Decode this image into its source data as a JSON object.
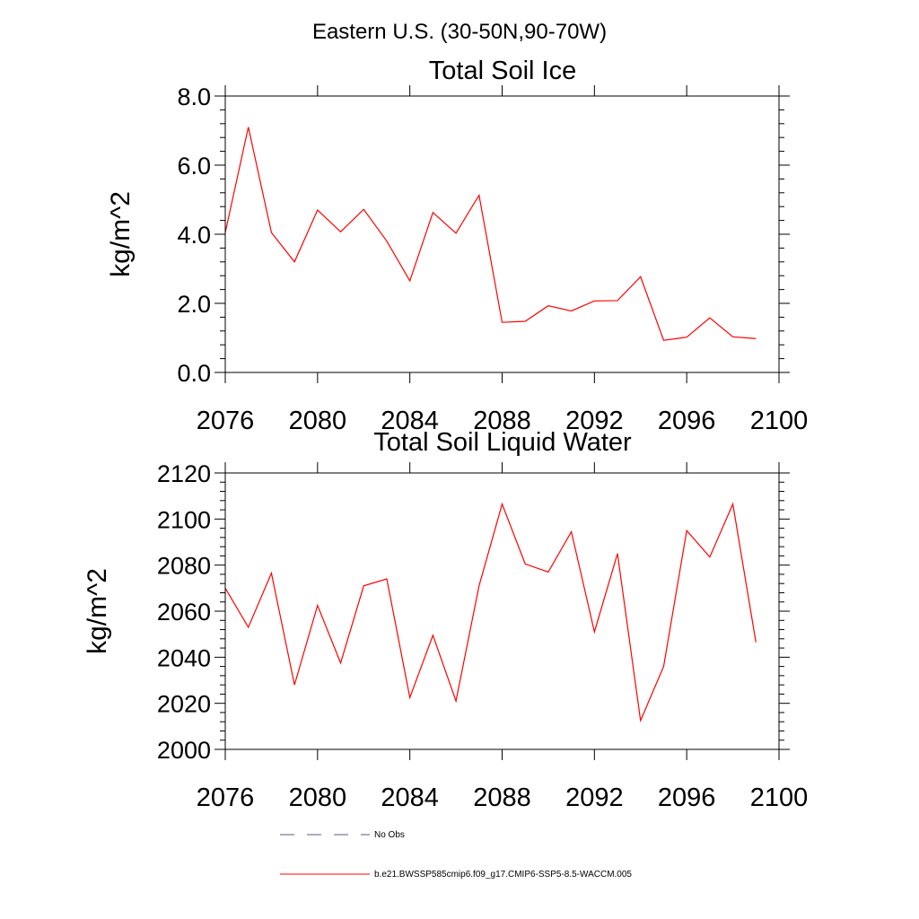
{
  "suptitle": "Eastern U.S. (30-50N,90-70W)",
  "chart_data": [
    {
      "type": "line",
      "title": "Total Soil Ice",
      "xlabel": "",
      "ylabel": "kg/m^2",
      "xlim": [
        2076,
        2100
      ],
      "ylim": [
        0.0,
        8.0
      ],
      "x_ticks": [
        2076,
        2080,
        2084,
        2088,
        2092,
        2096,
        2100
      ],
      "x_tick_labels": [
        "2076",
        "2080",
        "2084",
        "2088",
        "2092",
        "2096",
        "2100"
      ],
      "y_ticks": [
        0,
        2,
        4,
        6,
        8
      ],
      "y_tick_labels": [
        "0.0",
        "2.0",
        "4.0",
        "6.0",
        "8.0"
      ],
      "y_minor_step": 0.4,
      "x": [
        2076,
        2077,
        2078,
        2079,
        2080,
        2081,
        2082,
        2083,
        2084,
        2085,
        2086,
        2087,
        2088,
        2089,
        2090,
        2091,
        2092,
        2093,
        2094,
        2095,
        2096,
        2097,
        2098,
        2099
      ],
      "series": [
        {
          "color": "#ff0000",
          "values": [
            4.05,
            7.1,
            4.05,
            3.2,
            4.7,
            4.07,
            4.72,
            3.8,
            2.65,
            4.63,
            4.03,
            5.13,
            1.45,
            1.48,
            1.93,
            1.78,
            2.07,
            2.08,
            2.77,
            0.93,
            1.02,
            1.58,
            1.03,
            0.98
          ]
        }
      ]
    },
    {
      "type": "line",
      "title": "Total Soil Liquid Water",
      "xlabel": "",
      "ylabel": "kg/m^2",
      "xlim": [
        2076,
        2100
      ],
      "ylim": [
        2000,
        2120
      ],
      "x_ticks": [
        2076,
        2080,
        2084,
        2088,
        2092,
        2096,
        2100
      ],
      "x_tick_labels": [
        "2076",
        "2080",
        "2084",
        "2088",
        "2092",
        "2096",
        "2100"
      ],
      "y_ticks": [
        2000,
        2020,
        2040,
        2060,
        2080,
        2100,
        2120
      ],
      "y_tick_labels": [
        "2000",
        "2020",
        "2040",
        "2060",
        "2080",
        "2100",
        "2120"
      ],
      "y_minor_step": 4,
      "x": [
        2076,
        2077,
        2078,
        2079,
        2080,
        2081,
        2082,
        2083,
        2084,
        2085,
        2086,
        2087,
        2088,
        2089,
        2090,
        2091,
        2092,
        2093,
        2094,
        2095,
        2096,
        2097,
        2098,
        2099
      ],
      "series": [
        {
          "color": "#ff0000",
          "values": [
            2070,
            2053,
            2076.5,
            2028,
            2062.5,
            2037.5,
            2071,
            2074,
            2022.5,
            2049.5,
            2021,
            2071,
            2106.5,
            2080.5,
            2077,
            2094.5,
            2051,
            2085,
            2012.5,
            2036,
            2095,
            2083.5,
            2106.5,
            2046.5
          ]
        }
      ]
    }
  ],
  "legend": {
    "items": [
      {
        "label": "No Obs",
        "style": "dashed",
        "color": "#5a5a8a"
      },
      {
        "label": "b.e21.BWSSP585cmip6.f09_g17.CMIP6-SSP5-8.5-WACCM.005",
        "style": "solid",
        "color": "#ff0000"
      }
    ]
  }
}
